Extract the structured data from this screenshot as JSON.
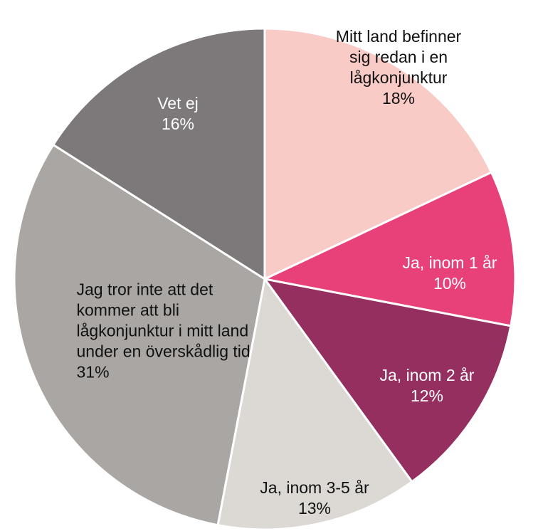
{
  "chart_data": {
    "type": "pie",
    "categories": [
      "Mitt land befinner sig redan i en lågkonjunktur",
      "Ja, inom 1 år",
      "Ja, inom 2 år",
      "Ja, inom 3-5 år",
      "Jag tror inte att det kommer att bli lågkonjunktur i mitt land under en överskådlig tid",
      "Vet ej"
    ],
    "values": [
      18,
      10,
      12,
      13,
      31,
      16
    ],
    "value_labels": [
      "18%",
      "10%",
      "12%",
      "13%",
      "31%",
      "16%"
    ],
    "colors": [
      "#f9cbc7",
      "#e8417a",
      "#952f5f",
      "#dcd9d5",
      "#aaa6a3",
      "#7d797a"
    ],
    "label_colors": [
      "#111111",
      "#ffffff",
      "#ffffff",
      "#111111",
      "#111111",
      "#ffffff"
    ]
  }
}
